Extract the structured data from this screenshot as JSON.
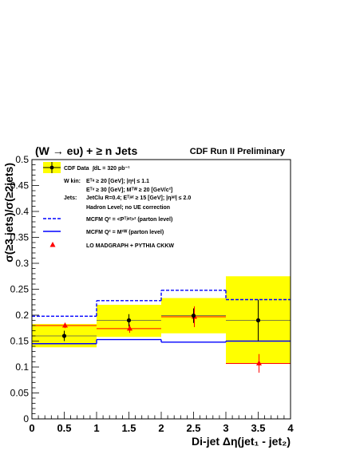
{
  "chart_data": {
    "type": "histogram",
    "title": "(W → eυ) + ≥ n Jets",
    "header_right": "CDF Run II Preliminary",
    "ylabel": "σ(≥3 jets)/σ(≥2jets)",
    "xlabel": "Di-jet Δη(jet₁ - jet₂)",
    "xlim": [
      0,
      4
    ],
    "ylim": [
      0,
      0.5
    ],
    "x_ticks": [
      "0",
      "0.5",
      "1",
      "1.5",
      "2",
      "2.5",
      "3",
      "3.5",
      "4"
    ],
    "y_ticks": [
      "0",
      "0.05",
      "0.1",
      "0.15",
      "0.2",
      "0.25",
      "0.3",
      "0.35",
      "0.4",
      "0.45",
      "0.5"
    ],
    "bins": [
      [
        0,
        1
      ],
      [
        1,
        2
      ],
      [
        2,
        3
      ],
      [
        3,
        4
      ]
    ],
    "series": [
      {
        "name": "CDF Data",
        "x": [
          0.5,
          1.5,
          2.5,
          3.5
        ],
        "y": [
          0.16,
          0.19,
          0.199,
          0.19
        ],
        "err_stat": [
          0.01,
          0.012,
          0.014,
          0.04
        ],
        "band_low": [
          0.138,
          0.158,
          0.165,
          0.106
        ],
        "band_high": [
          0.183,
          0.22,
          0.233,
          0.275
        ]
      },
      {
        "name": "MCFM Q² = <Pᵀʲᵉᵗ>² (parton level)",
        "values": [
          0.198,
          0.228,
          0.248,
          0.23
        ]
      },
      {
        "name": "MCFM Q² = M²ᵂ (parton level)",
        "values": [
          0.145,
          0.153,
          0.148,
          0.15
        ]
      },
      {
        "name": "LO MADGRAPH + PYTHIA CKKW",
        "x": [
          0.5,
          1.5,
          2.5,
          3.5
        ],
        "y": [
          0.18,
          0.174,
          0.197,
          0.107
        ],
        "err": [
          0.005,
          0.008,
          0.02,
          0.018
        ],
        "bin_values": [
          0.18,
          0.174,
          0.197,
          0.107
        ]
      }
    ],
    "legend": {
      "data_label": "CDF Data",
      "lumi": "∫dL = 320 pb⁻¹",
      "wkin_label": "W kin:",
      "wkin_1": "Eᵀᵉ ≥ 20 [GeV]; |ηᵉ| ≤ 1.1",
      "wkin_2": "Eᵀᵛ ≥ 30 [GeV]; Mᵀᵂ ≥ 20 [GeV/c²]",
      "jets_label": "Jets:",
      "jets_1": "JetClu R=0.4; Eᵀʲᵉᵗ ≥ 15 [GeV]; |ηʲᵉᵗ| ≤ 2.0",
      "hadron": "Hadron Level; no UE correction",
      "mcfm_pt": "MCFM Q² = <Pᵀʲᵉᵗ>² (parton level)",
      "mcfm_mw": "MCFM Q² = M²ᵂ (parton level)",
      "madgraph": "LO MADGRAPH + PYTHIA CKKW"
    },
    "colors": {
      "band": "#ffff00",
      "data": "#000000",
      "mcfm_pt": "#0000ff",
      "mcfm_mw": "#0000ff",
      "madgraph": "#ff0000"
    }
  }
}
